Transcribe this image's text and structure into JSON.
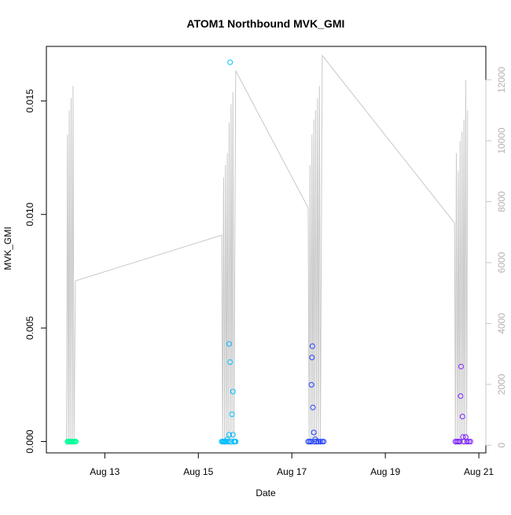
{
  "chart_data": {
    "type": "scatter",
    "title": "ATOM1 Northbound MVK_GMI",
    "xlabel": "Date",
    "ylabel": "MVK_GMI",
    "x_ticks": [
      "Aug 13",
      "Aug 15",
      "Aug 17",
      "Aug 19",
      "Aug 21"
    ],
    "x_tick_days": [
      13,
      15,
      17,
      19,
      21
    ],
    "xlim_days": [
      11.75,
      21.15
    ],
    "y_ticks": [
      "0.000",
      "0.005",
      "0.010",
      "0.015"
    ],
    "y_tick_values": [
      0,
      0.005,
      0.01,
      0.015
    ],
    "ylim": [
      -0.0005,
      0.0174
    ],
    "y2_ticks": [
      "0",
      "2000",
      "4000",
      "6000",
      "8000",
      "10000",
      "12000"
    ],
    "y2_tick_values": [
      0,
      2000,
      4000,
      6000,
      8000,
      10000,
      12000
    ],
    "y2lim": [
      -250,
      13100
    ],
    "colors": {
      "flight1": "#00ff99",
      "flight2": "#00bfff",
      "flight3": "#1f3fff",
      "flight4": "#7a1fff",
      "altitude": "#c8c8c8"
    },
    "series": [
      {
        "color_key": "flight1",
        "points": [
          [
            12.2,
            0
          ],
          [
            12.22,
            0
          ],
          [
            12.24,
            0
          ],
          [
            12.26,
            0
          ],
          [
            12.28,
            0
          ],
          [
            12.3,
            0
          ],
          [
            12.32,
            0
          ],
          [
            12.34,
            0
          ],
          [
            12.36,
            0
          ],
          [
            12.38,
            0
          ]
        ]
      },
      {
        "color_key": "flight2",
        "points": [
          [
            15.68,
            0.0167
          ],
          [
            15.66,
            0.0043
          ],
          [
            15.68,
            0.0035
          ],
          [
            15.74,
            0.0022
          ],
          [
            15.72,
            0.0012
          ],
          [
            15.66,
            0.0003
          ],
          [
            15.62,
            0.0001
          ],
          [
            15.74,
            0.0003
          ],
          [
            15.5,
            0
          ],
          [
            15.52,
            0
          ],
          [
            15.54,
            0
          ],
          [
            15.56,
            0
          ],
          [
            15.58,
            0
          ],
          [
            15.6,
            0
          ],
          [
            15.64,
            0
          ],
          [
            15.7,
            0
          ],
          [
            15.76,
            0
          ],
          [
            15.78,
            0
          ],
          [
            15.8,
            0
          ]
        ]
      },
      {
        "color_key": "flight3",
        "points": [
          [
            17.44,
            0.0042
          ],
          [
            17.43,
            0.0037
          ],
          [
            17.42,
            0.0025
          ],
          [
            17.45,
            0.0015
          ],
          [
            17.47,
            0.0004
          ],
          [
            17.5,
            0.0001
          ],
          [
            17.35,
            0
          ],
          [
            17.38,
            0
          ],
          [
            17.41,
            0
          ],
          [
            17.48,
            0
          ],
          [
            17.53,
            0
          ],
          [
            17.57,
            0
          ],
          [
            17.61,
            0
          ],
          [
            17.65,
            0
          ],
          [
            17.68,
            0
          ]
        ]
      },
      {
        "color_key": "flight4",
        "points": [
          [
            20.62,
            0.0033
          ],
          [
            20.61,
            0.002
          ],
          [
            20.65,
            0.0011
          ],
          [
            20.66,
            0.0002
          ],
          [
            20.72,
            0.0002
          ],
          [
            20.5,
            0
          ],
          [
            20.53,
            0
          ],
          [
            20.56,
            0
          ],
          [
            20.59,
            0
          ],
          [
            20.68,
            0
          ],
          [
            20.75,
            0
          ],
          [
            20.79,
            0
          ],
          [
            20.82,
            0
          ]
        ]
      }
    ],
    "altitude_series": {
      "axis": "right",
      "points": [
        [
          12.18,
          0
        ],
        [
          12.2,
          10200
        ],
        [
          12.22,
          0
        ],
        [
          12.24,
          11000
        ],
        [
          12.26,
          0
        ],
        [
          12.28,
          11400
        ],
        [
          12.3,
          0
        ],
        [
          12.32,
          11800
        ],
        [
          12.34,
          0
        ],
        [
          12.37,
          5400
        ],
        [
          15.5,
          6900
        ],
        [
          15.52,
          0
        ],
        [
          15.54,
          8800
        ],
        [
          15.56,
          0
        ],
        [
          15.58,
          9200
        ],
        [
          15.6,
          0
        ],
        [
          15.62,
          9600
        ],
        [
          15.64,
          0
        ],
        [
          15.66,
          10600
        ],
        [
          15.68,
          0
        ],
        [
          15.7,
          11200
        ],
        [
          15.72,
          0
        ],
        [
          15.74,
          11600
        ],
        [
          15.76,
          0
        ],
        [
          15.8,
          12300
        ],
        [
          17.35,
          7800
        ],
        [
          17.37,
          0
        ],
        [
          17.39,
          9200
        ],
        [
          17.41,
          0
        ],
        [
          17.43,
          10200
        ],
        [
          17.45,
          0
        ],
        [
          17.47,
          10700
        ],
        [
          17.49,
          0
        ],
        [
          17.51,
          11000
        ],
        [
          17.53,
          0
        ],
        [
          17.55,
          11400
        ],
        [
          17.57,
          0
        ],
        [
          17.59,
          11800
        ],
        [
          17.61,
          0
        ],
        [
          17.65,
          12800
        ],
        [
          20.48,
          7300
        ],
        [
          20.5,
          0
        ],
        [
          20.52,
          9600
        ],
        [
          20.54,
          0
        ],
        [
          20.56,
          9000
        ],
        [
          20.58,
          0
        ],
        [
          20.6,
          10000
        ],
        [
          20.62,
          0
        ],
        [
          20.64,
          10300
        ],
        [
          20.66,
          0
        ],
        [
          20.68,
          10700
        ],
        [
          20.7,
          0
        ],
        [
          20.72,
          12000
        ],
        [
          20.74,
          0
        ],
        [
          20.76,
          11000
        ]
      ]
    }
  }
}
